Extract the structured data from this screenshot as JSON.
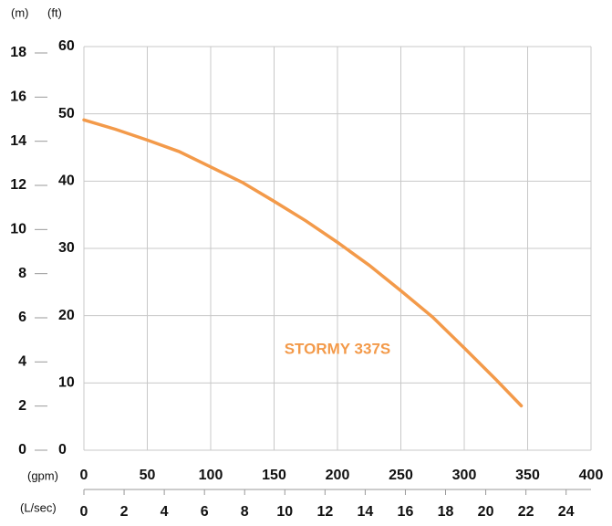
{
  "chart_data": {
    "type": "line",
    "annotation": "STORMY 337S",
    "y_unit": "(ft)",
    "y2_unit": "(m)",
    "x_unit": "(gpm)",
    "x2_unit": "(L/sec)",
    "x": [
      0,
      25,
      50,
      75,
      100,
      125,
      150,
      175,
      200,
      225,
      250,
      275,
      300,
      325,
      345
    ],
    "series": [
      {
        "name": "STORMY 337S",
        "color": "#f39a4a",
        "values": [
          49.1,
          47.7,
          46.1,
          44.4,
          42.1,
          39.8,
          37.0,
          34.1,
          30.9,
          27.5,
          23.7,
          19.8,
          15.2,
          10.5,
          6.6
        ]
      }
    ],
    "xlim": [
      0,
      400
    ],
    "xticks": [
      0,
      50,
      100,
      150,
      200,
      250,
      300,
      350,
      400
    ],
    "x2lim": [
      0,
      25.24
    ],
    "x2ticks": [
      0,
      2,
      4,
      6,
      8,
      10,
      12,
      14,
      16,
      18,
      20,
      22,
      24
    ],
    "ylim": [
      0,
      60
    ],
    "yticks": [
      0,
      10,
      20,
      30,
      40,
      50,
      60
    ],
    "y2lim": [
      0,
      18.29
    ],
    "y2ticks": [
      0,
      2,
      4,
      6,
      8,
      10,
      12,
      14,
      16,
      18
    ],
    "grid": true
  }
}
